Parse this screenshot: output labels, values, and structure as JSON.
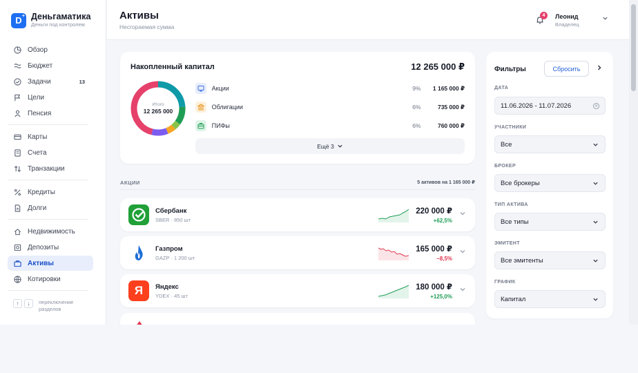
{
  "brand": {
    "name": "Деньгаматика",
    "tagline": "Деньги под контролем",
    "logo_letter": "D"
  },
  "nav": {
    "items": [
      {
        "label": "Обзор",
        "icon": "pie-icon"
      },
      {
        "label": "Бюджет",
        "icon": "waves-icon"
      },
      {
        "label": "Задачи",
        "icon": "check-circle-icon",
        "badge": "13"
      },
      {
        "label": "Цели",
        "icon": "flag-icon"
      },
      {
        "label": "Пенсия",
        "icon": "person-icon"
      },
      {
        "label": "Карты",
        "icon": "card-icon"
      },
      {
        "label": "Счета",
        "icon": "document-icon"
      },
      {
        "label": "Транзакции",
        "icon": "swap-icon"
      },
      {
        "label": "Кредиты",
        "icon": "percent-icon"
      },
      {
        "label": "Долги",
        "icon": "file-icon"
      },
      {
        "label": "Недвижимость",
        "icon": "home-icon"
      },
      {
        "label": "Депозиты",
        "icon": "safe-icon"
      },
      {
        "label": "Активы",
        "icon": "briefcase-icon"
      },
      {
        "label": "Котировки",
        "icon": "globe-icon"
      }
    ],
    "hint": "переключение разделов",
    "active": "Активы"
  },
  "header": {
    "title": "Активы",
    "subtitle": "Несгораемая сумма",
    "notifications": "4",
    "user_name": "Леонид",
    "user_role": "Владелец"
  },
  "capital": {
    "title": "Накопленный капитал",
    "total": "12 265 000 ₽",
    "donut_label": "Итого",
    "donut_value": "12 265 000",
    "categories": [
      {
        "name": "Акции",
        "pct": "9%",
        "amount": "1 165 000 ₽",
        "color": "#3f6fe0",
        "bg": "#e6edfc",
        "icon": "chart-icon"
      },
      {
        "name": "Облигации",
        "pct": "6%",
        "amount": "735 000 ₽",
        "color": "#e8941d",
        "bg": "#fdf0dc",
        "icon": "bank-icon"
      },
      {
        "name": "ПИФы",
        "pct": "6%",
        "amount": "760 000 ₽",
        "color": "#1f9d55",
        "bg": "#dff4e8",
        "icon": "briefcase-icon"
      }
    ],
    "more_label": "Ещё 3",
    "donut_colors": [
      "#0f9aa8",
      "#1f9d55",
      "#8bc34a",
      "#f5a623",
      "#7c5cf0",
      "#e5416b"
    ]
  },
  "assets": {
    "section_title": "АКЦИИ",
    "section_meta": "5 активов на 1 165 000 ₽",
    "items": [
      {
        "name": "Сбербанк",
        "meta": "SBER · 850 шт",
        "value": "220 000 ₽",
        "change": "+62,5%",
        "trend": "up",
        "logo": "sber-logo-icon",
        "logo_bg": "#21a038",
        "logo_text": ""
      },
      {
        "name": "Газпром",
        "meta": "GAZP · 1 200 шт",
        "value": "165 000 ₽",
        "change": "−8,5%",
        "trend": "down",
        "logo": "flame-logo-icon",
        "logo_bg": "#ffffff",
        "logo_text": ""
      },
      {
        "name": "Яндекс",
        "meta": "YDEX · 45 шт",
        "value": "180 000 ₽",
        "change": "+125,0%",
        "trend": "up",
        "logo": "yandex-logo-icon",
        "logo_bg": "#fc3f1d",
        "logo_text": "Я"
      }
    ]
  },
  "filters": {
    "title": "Фильтры",
    "reset_label": "Сбросить",
    "fields": [
      {
        "label": "ДАТА",
        "value": "11.06.2026 - 11.07.2026",
        "kind": "date"
      },
      {
        "label": "УЧАСТНИКИ",
        "value": "Все",
        "kind": "select"
      },
      {
        "label": "БРОКЕР",
        "value": "Все брокеры",
        "kind": "select"
      },
      {
        "label": "ТИП АКТИВА",
        "value": "Все типы",
        "kind": "select"
      },
      {
        "label": "ЭМИТЕНТ",
        "value": "Все эмитенты",
        "kind": "select"
      },
      {
        "label": "ГРАФИК",
        "value": "Капитал",
        "kind": "select"
      }
    ]
  }
}
